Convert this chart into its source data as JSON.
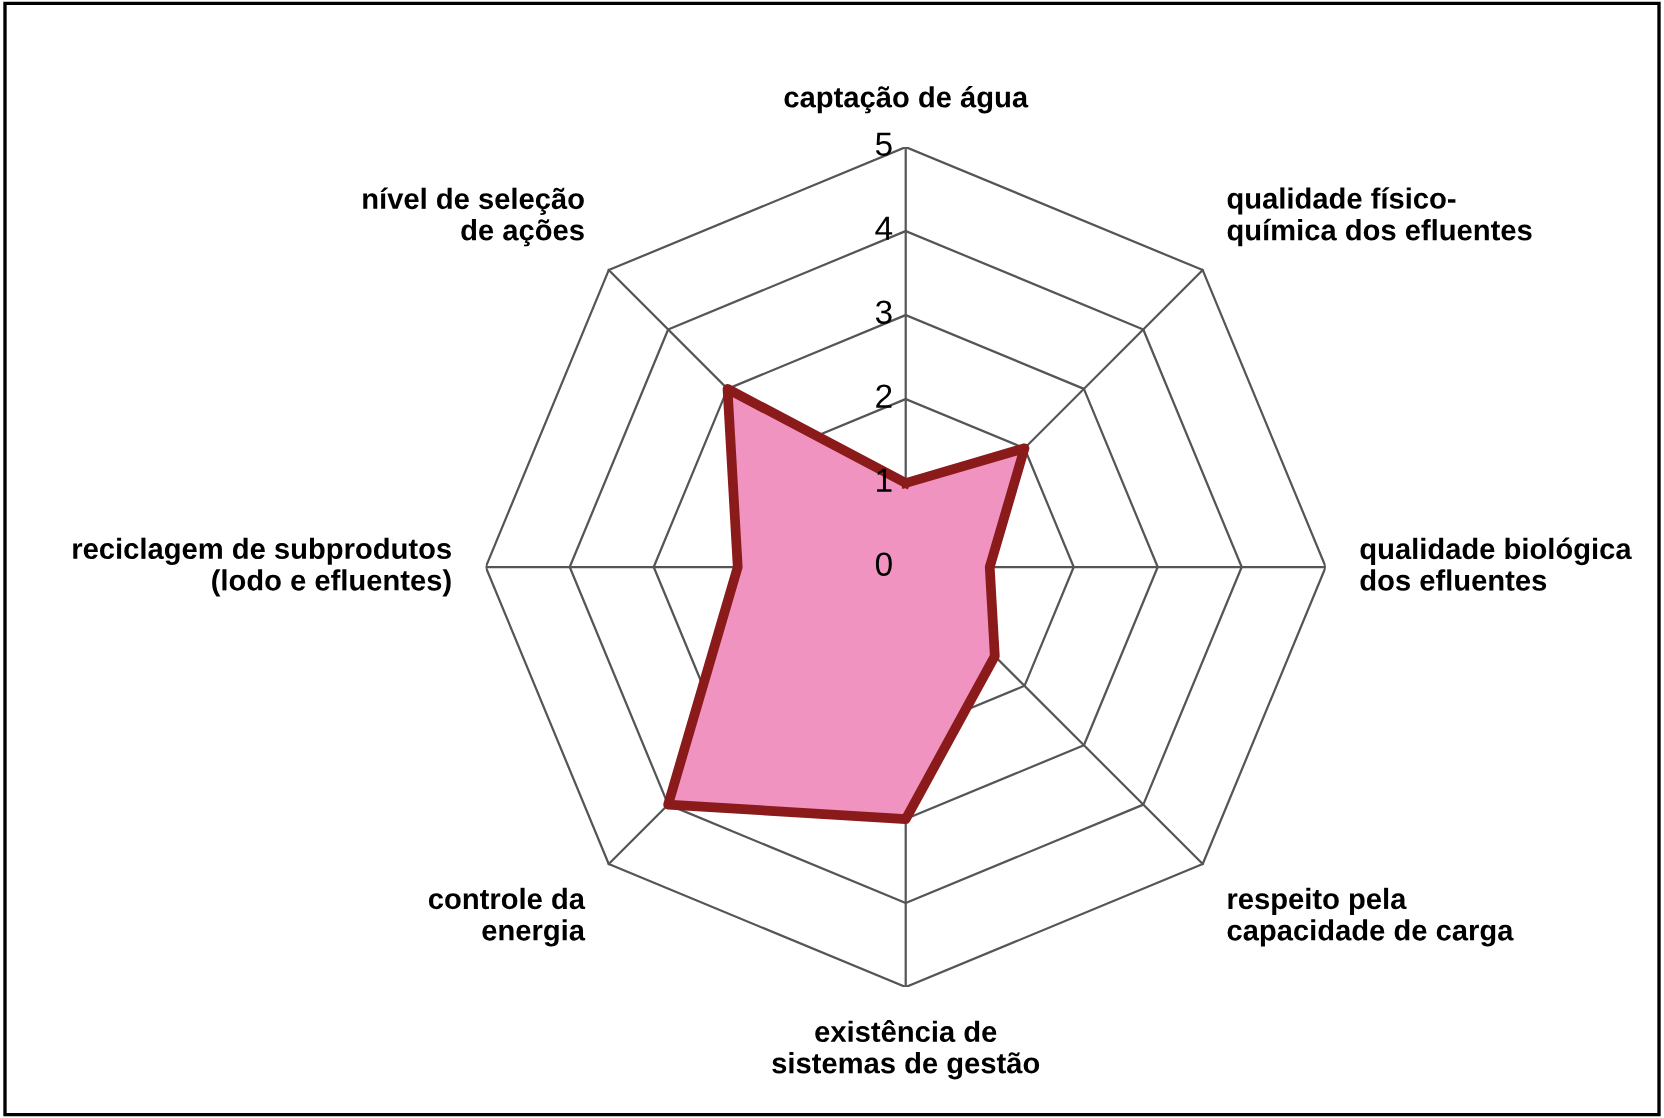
{
  "chart_data": {
    "type": "radar",
    "categories": [
      "captação de água",
      "qualidade físico-\nquímica dos efluentes",
      "qualidade biológica\ndos efluentes",
      "respeito pela\ncapacidade de carga",
      "existência de\nsistemas de gestão",
      "controle da\nenergia",
      "reciclagem de subprodutos\n(lodo e efluentes)",
      "nível de seleção\nde ações"
    ],
    "series": [
      {
        "color": "#8b1a1a",
        "values": [
          1,
          2,
          1,
          1.5,
          3,
          4,
          2,
          3
        ]
      }
    ],
    "ylim": [
      0,
      5
    ],
    "yticks": [
      0,
      1,
      2,
      3,
      4,
      5
    ],
    "grid": true
  }
}
